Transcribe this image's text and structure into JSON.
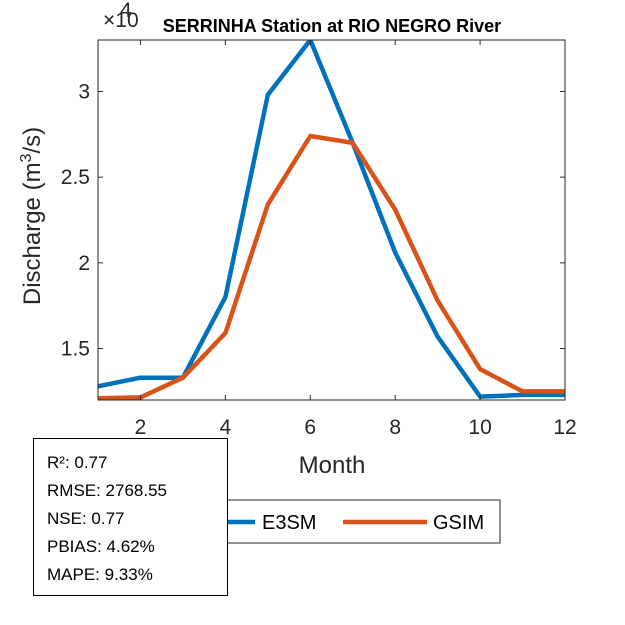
{
  "chart_data": {
    "type": "line",
    "title": "SERRINHA  Station at  RIO NEGRO  River",
    "xlabel": "Month",
    "ylabel_main": "Discharge (m",
    "ylabel_sup": "3",
    "ylabel_tail": "/s)",
    "exponent_prefix": "×10",
    "exponent_power": "4",
    "xlim": [
      1,
      12
    ],
    "ylim": [
      1.2,
      3.3
    ],
    "x": [
      1,
      2,
      3,
      4,
      5,
      6,
      7,
      8,
      9,
      10,
      11,
      12
    ],
    "xticks": [
      2,
      4,
      6,
      8,
      10,
      12
    ],
    "xtick_labels": [
      "2",
      "4",
      "6",
      "8",
      "10",
      "12"
    ],
    "yticks": [
      1.5,
      2,
      2.5,
      3
    ],
    "ytick_labels": [
      "1.5",
      "2",
      "2.5",
      "3"
    ],
    "series": [
      {
        "name": "E3SM",
        "color": "#0072BD",
        "values": [
          1.28,
          1.33,
          1.33,
          1.8,
          2.98,
          3.3,
          2.7,
          2.06,
          1.57,
          1.22,
          1.23,
          1.23
        ]
      },
      {
        "name": "GSIM",
        "color": "#D95319",
        "values": [
          1.21,
          1.215,
          1.33,
          1.59,
          2.34,
          2.74,
          2.7,
          2.31,
          1.78,
          1.38,
          1.25,
          1.25
        ]
      }
    ],
    "legend": [
      "E3SM",
      "GSIM"
    ],
    "grid": false
  },
  "stats": {
    "r2": "R²: 0.77",
    "rmse": "RMSE: 2768.55",
    "nse": "NSE: 0.77",
    "pbias": "PBIAS: 4.62%",
    "mape": "MAPE: 9.33%"
  }
}
